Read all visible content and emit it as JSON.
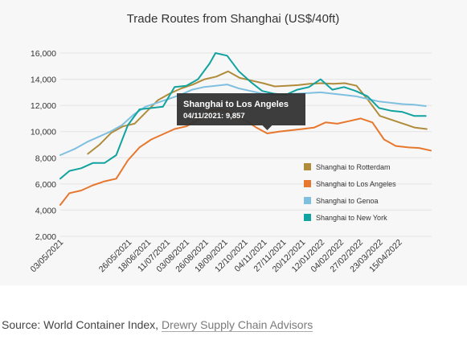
{
  "chart_data": {
    "type": "line",
    "title": "Trade Routes from Shanghai (US$/40ft)",
    "ylim": [
      2000,
      16000
    ],
    "yticks": [
      "2,000",
      "4,000",
      "6,000",
      "8,000",
      "10,000",
      "12,000",
      "14,000",
      "16,000"
    ],
    "ytick_values": [
      2000,
      4000,
      6000,
      8000,
      10000,
      12000,
      14000,
      16000
    ],
    "xlim": [
      "2021-03-01",
      "2022-05-20"
    ],
    "xtick_dates": [
      "2021-03-05",
      "2021-05-26",
      "2021-06-18",
      "2021-07-11",
      "2021-08-03",
      "2021-08-26",
      "2021-09-18",
      "2021-10-12",
      "2021-11-04",
      "2021-11-27",
      "2021-12-20",
      "2022-01-12",
      "2022-02-04",
      "2022-02-27",
      "2022-03-23",
      "2022-04-15"
    ],
    "xtick_labels": [
      "03/05/2021",
      "26/05/2021",
      "18/06/2021",
      "11/07/2021",
      "03/08/2021",
      "26/08/2021",
      "18/09/2021",
      "12/10/2021",
      "04/11/2021",
      "27/11/2021",
      "20/12/2021",
      "12/01/2022",
      "04/02/2022",
      "27/02/2022",
      "23/03/2022",
      "15/04/2022"
    ],
    "grid": "horizontal",
    "legend_position": "right",
    "series": [
      {
        "name": "Shanghai to Rotterdam",
        "color": "#b08c3a",
        "points": [
          [
            "2021-04-03",
            8300
          ],
          [
            "2021-04-17",
            9000
          ],
          [
            "2021-05-01",
            9900
          ],
          [
            "2021-05-15",
            10400
          ],
          [
            "2021-05-29",
            10600
          ],
          [
            "2021-06-12",
            11500
          ],
          [
            "2021-06-26",
            12400
          ],
          [
            "2021-07-10",
            12900
          ],
          [
            "2021-07-24",
            13300
          ],
          [
            "2021-08-07",
            13600
          ],
          [
            "2021-08-21",
            14000
          ],
          [
            "2021-09-04",
            14200
          ],
          [
            "2021-09-18",
            14600
          ],
          [
            "2021-10-02",
            14100
          ],
          [
            "2021-10-16",
            13900
          ],
          [
            "2021-10-30",
            13700
          ],
          [
            "2021-11-13",
            13450
          ],
          [
            "2021-11-27",
            13500
          ],
          [
            "2021-12-11",
            13550
          ],
          [
            "2021-12-25",
            13650
          ],
          [
            "2022-01-08",
            13700
          ],
          [
            "2022-01-22",
            13650
          ],
          [
            "2022-02-05",
            13700
          ],
          [
            "2022-02-19",
            13500
          ],
          [
            "2022-03-05",
            12400
          ],
          [
            "2022-03-19",
            11200
          ],
          [
            "2022-04-02",
            10900
          ],
          [
            "2022-04-16",
            10600
          ],
          [
            "2022-04-30",
            10300
          ],
          [
            "2022-05-14",
            10200
          ]
        ]
      },
      {
        "name": "Shanghai to Los Angeles",
        "color": "#e8772e",
        "points": [
          [
            "2021-03-01",
            4400
          ],
          [
            "2021-03-12",
            5300
          ],
          [
            "2021-03-26",
            5500
          ],
          [
            "2021-04-09",
            5900
          ],
          [
            "2021-04-23",
            6200
          ],
          [
            "2021-05-07",
            6400
          ],
          [
            "2021-05-21",
            7800
          ],
          [
            "2021-06-04",
            8800
          ],
          [
            "2021-06-18",
            9400
          ],
          [
            "2021-07-02",
            9800
          ],
          [
            "2021-07-16",
            10200
          ],
          [
            "2021-07-30",
            10400
          ],
          [
            "2021-08-13",
            10900
          ],
          [
            "2021-08-27",
            11600
          ],
          [
            "2021-09-10",
            11700
          ],
          [
            "2021-09-24",
            11300
          ],
          [
            "2021-10-08",
            10900
          ],
          [
            "2021-10-22",
            10300
          ],
          [
            "2021-11-04",
            9857
          ],
          [
            "2021-11-18",
            10000
          ],
          [
            "2021-12-02",
            10100
          ],
          [
            "2021-12-16",
            10200
          ],
          [
            "2021-12-30",
            10300
          ],
          [
            "2022-01-13",
            10700
          ],
          [
            "2022-01-27",
            10600
          ],
          [
            "2022-02-10",
            10800
          ],
          [
            "2022-02-24",
            11000
          ],
          [
            "2022-03-10",
            10700
          ],
          [
            "2022-03-24",
            9400
          ],
          [
            "2022-04-07",
            8900
          ],
          [
            "2022-04-21",
            8800
          ],
          [
            "2022-05-05",
            8750
          ],
          [
            "2022-05-19",
            8550
          ]
        ]
      },
      {
        "name": "Shanghai to Genoa",
        "color": "#7fbfe0",
        "points": [
          [
            "2021-03-01",
            8200
          ],
          [
            "2021-03-19",
            8700
          ],
          [
            "2021-04-02",
            9200
          ],
          [
            "2021-04-16",
            9600
          ],
          [
            "2021-04-30",
            10000
          ],
          [
            "2021-05-14",
            10500
          ],
          [
            "2021-05-28",
            11300
          ],
          [
            "2021-06-11",
            11900
          ],
          [
            "2021-06-25",
            12200
          ],
          [
            "2021-07-09",
            12500
          ],
          [
            "2021-07-23",
            12800
          ],
          [
            "2021-08-06",
            13200
          ],
          [
            "2021-08-20",
            13400
          ],
          [
            "2021-09-03",
            13500
          ],
          [
            "2021-09-17",
            13600
          ],
          [
            "2021-10-01",
            13300
          ],
          [
            "2021-10-15",
            13100
          ],
          [
            "2021-10-29",
            12900
          ],
          [
            "2021-11-12",
            12800
          ],
          [
            "2021-11-26",
            12850
          ],
          [
            "2021-12-10",
            12900
          ],
          [
            "2021-12-24",
            12950
          ],
          [
            "2022-01-07",
            13000
          ],
          [
            "2022-01-21",
            12900
          ],
          [
            "2022-02-04",
            12800
          ],
          [
            "2022-02-18",
            12700
          ],
          [
            "2022-03-04",
            12500
          ],
          [
            "2022-03-18",
            12300
          ],
          [
            "2022-04-01",
            12200
          ],
          [
            "2022-04-15",
            12100
          ],
          [
            "2022-04-29",
            12050
          ],
          [
            "2022-05-13",
            11950
          ]
        ]
      },
      {
        "name": "Shanghai to New York",
        "color": "#11a3a0",
        "points": [
          [
            "2021-03-01",
            6400
          ],
          [
            "2021-03-12",
            7000
          ],
          [
            "2021-03-26",
            7200
          ],
          [
            "2021-04-09",
            7600
          ],
          [
            "2021-04-23",
            7600
          ],
          [
            "2021-05-07",
            8200
          ],
          [
            "2021-05-21",
            10500
          ],
          [
            "2021-06-04",
            11700
          ],
          [
            "2021-06-18",
            11800
          ],
          [
            "2021-07-02",
            11900
          ],
          [
            "2021-07-16",
            13400
          ],
          [
            "2021-07-30",
            13500
          ],
          [
            "2021-08-13",
            14000
          ],
          [
            "2021-08-27",
            15200
          ],
          [
            "2021-09-03",
            16000
          ],
          [
            "2021-09-17",
            15800
          ],
          [
            "2021-10-01",
            14600
          ],
          [
            "2021-10-15",
            13800
          ],
          [
            "2021-10-29",
            13100
          ],
          [
            "2021-11-12",
            12900
          ],
          [
            "2021-11-26",
            12800
          ],
          [
            "2021-12-10",
            13200
          ],
          [
            "2021-12-24",
            13400
          ],
          [
            "2022-01-07",
            14000
          ],
          [
            "2022-01-21",
            13200
          ],
          [
            "2022-02-04",
            13400
          ],
          [
            "2022-02-18",
            13100
          ],
          [
            "2022-03-04",
            12700
          ],
          [
            "2022-03-18",
            11800
          ],
          [
            "2022-04-01",
            11600
          ],
          [
            "2022-04-15",
            11500
          ],
          [
            "2022-04-29",
            11200
          ],
          [
            "2022-05-13",
            11200
          ]
        ]
      }
    ],
    "tooltip": {
      "title": "Shanghai to Los Angeles",
      "text": "04/11/2021: 9,857",
      "date": "2021-11-04",
      "value": 9857
    }
  },
  "source": {
    "prefix": "Source: World Container Index, ",
    "link_text": "Drewry Supply Chain Advisors"
  }
}
